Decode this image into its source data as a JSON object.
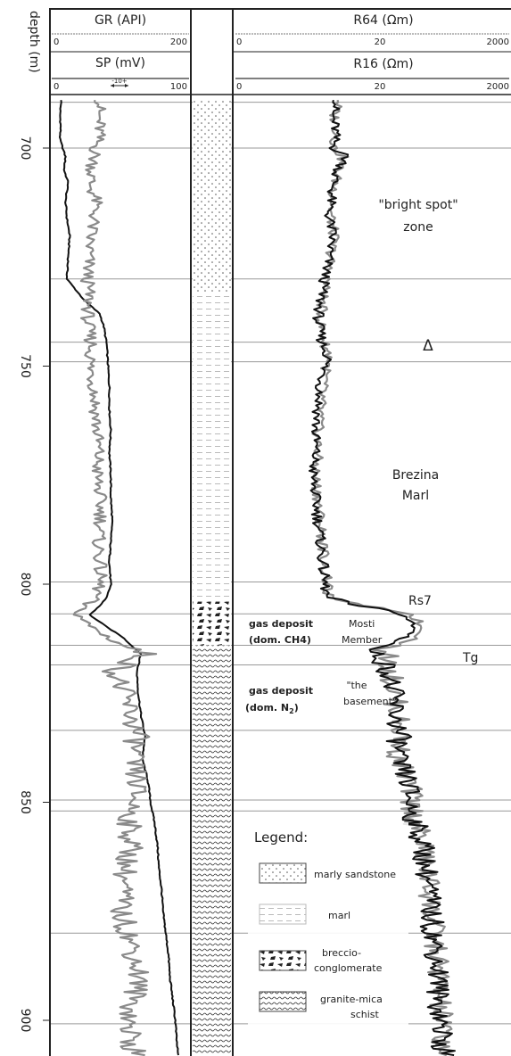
{
  "chart_data": {
    "type": "line",
    "depth_axis": {
      "label": "depth (m)",
      "ticks": [
        700,
        750,
        800,
        850,
        900
      ],
      "range": [
        689,
        908
      ],
      "inverted": true
    },
    "header": {
      "gr": {
        "label": "GR (API)",
        "min": "0",
        "max": "200"
      },
      "sp": {
        "label": "SP (mV)",
        "min": "0",
        "max": "100",
        "scale_bar": "-10+"
      },
      "r64": {
        "label": "R64 (Ωm)",
        "t0": "0",
        "t1": "20",
        "t2": "2000"
      },
      "r16": {
        "label": "R16 (Ωm)",
        "t0": "0",
        "t1": "20",
        "t2": "2000"
      }
    },
    "boundaries": [
      689.5,
      700,
      730,
      744.5,
      749,
      799.5,
      806.8,
      814,
      818.5,
      833.5,
      849.5,
      852,
      880,
      900.8
    ],
    "series": [
      {
        "name": "GR (API)",
        "track": "left",
        "range": [
          0,
          200
        ],
        "style": "black",
        "depth": [
          689,
          692,
          695,
          698,
          700,
          702,
          705,
          708,
          712,
          716,
          720,
          725,
          730,
          735,
          738,
          741,
          745,
          750,
          755,
          760,
          765,
          770,
          775,
          780,
          785,
          790,
          795,
          800,
          803,
          805,
          807,
          810,
          812,
          814,
          816,
          820,
          825,
          830,
          835,
          840,
          845,
          850,
          855,
          860,
          865,
          870,
          875,
          880,
          885,
          890,
          895,
          900,
          905,
          908
        ],
        "values": [
          14,
          12,
          13,
          12,
          16,
          20,
          18,
          24,
          20,
          22,
          26,
          24,
          22,
          48,
          70,
          76,
          80,
          82,
          84,
          84,
          86,
          84,
          86,
          86,
          88,
          86,
          84,
          86,
          80,
          70,
          55,
          82,
          102,
          116,
          130,
          124,
          126,
          130,
          136,
          132,
          140,
          144,
          150,
          154,
          156,
          160,
          162,
          166,
          170,
          172,
          176,
          180,
          182,
          184
        ]
      },
      {
        "name": "SP (mV)",
        "track": "left",
        "range": [
          0,
          100
        ],
        "style": "gray",
        "depth": [
          689,
          692,
          696,
          700,
          704,
          708,
          712,
          716,
          720,
          725,
          730,
          735,
          740,
          745,
          750,
          755,
          760,
          765,
          770,
          775,
          780,
          785,
          790,
          795,
          800,
          803,
          806,
          809,
          812,
          814,
          816,
          820,
          825,
          830,
          835,
          840,
          845,
          850,
          855,
          860,
          865,
          870,
          875,
          880,
          885,
          890,
          895,
          900,
          905,
          908
        ],
        "values": [
          36,
          34,
          35,
          32,
          30,
          28,
          32,
          31,
          28,
          27,
          26,
          27,
          26,
          29,
          28,
          31,
          32,
          33,
          34,
          33,
          35,
          36,
          34,
          35,
          35,
          32,
          18,
          25,
          40,
          52,
          68,
          46,
          52,
          58,
          62,
          58,
          62,
          60,
          56,
          58,
          54,
          52,
          50,
          56,
          60,
          64,
          60,
          56,
          58,
          60
        ]
      },
      {
        "name": "R64 (Ωm)",
        "track": "right",
        "scale": "log",
        "range": [
          2,
          2000
        ],
        "style": "gray",
        "depth": [
          689,
          692,
          696,
          700,
          702,
          706,
          710,
          715,
          720,
          725,
          730,
          735,
          740,
          745,
          748,
          750,
          755,
          760,
          765,
          770,
          775,
          780,
          785,
          790,
          795,
          800,
          803,
          805,
          807,
          809,
          811,
          812,
          814,
          815,
          816,
          818,
          820,
          825,
          830,
          835,
          840,
          845,
          850,
          855,
          860,
          865,
          870,
          875,
          880,
          885,
          890,
          895,
          900,
          905,
          908
        ],
        "values": [
          28,
          24,
          26,
          24,
          30,
          26,
          24,
          22,
          24,
          22,
          20,
          18,
          17,
          19,
          22,
          20,
          18,
          17,
          16,
          16,
          15,
          16,
          17,
          18,
          19,
          20,
          21,
          45,
          170,
          210,
          230,
          205,
          120,
          70,
          90,
          95,
          100,
          110,
          120,
          130,
          120,
          160,
          170,
          190,
          230,
          250,
          270,
          280,
          300,
          320,
          350,
          340,
          370,
          380,
          390
        ]
      },
      {
        "name": "R16 (Ωm)",
        "track": "right",
        "scale": "log",
        "range": [
          2,
          2000
        ],
        "style": "black",
        "depth": [
          689,
          692,
          696,
          700,
          702,
          706,
          710,
          715,
          720,
          725,
          730,
          735,
          740,
          745,
          748,
          750,
          755,
          760,
          765,
          770,
          775,
          780,
          785,
          790,
          795,
          800,
          803,
          805,
          807,
          809,
          811,
          812,
          814,
          815,
          816,
          818,
          820,
          825,
          830,
          835,
          840,
          845,
          850,
          855,
          860,
          865,
          870,
          875,
          880,
          885,
          890,
          895,
          900,
          905,
          908
        ],
        "values": [
          27,
          23,
          25,
          24,
          33,
          25,
          23,
          21,
          23,
          21,
          19,
          17,
          16,
          18,
          21,
          19,
          17,
          16,
          15,
          15,
          14,
          15,
          16,
          17,
          18,
          19,
          20,
          42,
          140,
          170,
          180,
          150,
          95,
          55,
          75,
          85,
          95,
          105,
          115,
          125,
          115,
          155,
          165,
          185,
          225,
          245,
          265,
          275,
          295,
          315,
          340,
          330,
          360,
          370,
          380
        ]
      }
    ],
    "lithology": [
      {
        "type": "marly-sandstone",
        "top": 689,
        "base": 733
      },
      {
        "type": "marl",
        "top": 733,
        "base": 804
      },
      {
        "type": "breccio-conglomerate",
        "top": 804,
        "base": 814
      },
      {
        "type": "granite-mica-schist",
        "top": 814,
        "base": 908
      }
    ],
    "annotations": {
      "bright_spot_1": "\"bright spot\"",
      "bright_spot_2": "zone",
      "delta": "Δ",
      "brezina_1": "Brezina",
      "brezina_2": "Marl",
      "rs7": "Rs7",
      "tg": "Tg",
      "gas1_line1": "gas deposit",
      "gas1_line2": "(dom. CH4)",
      "mosti_1": "Mosti",
      "mosti_2": "Member",
      "gas2_line1": "gas deposit",
      "gas2_line2_pre": "(dom. N",
      "gas2_line2_sub": "2",
      "gas2_line2_post": ")",
      "basement_1": "\"the",
      "basement_2": "basement\""
    },
    "legend": {
      "title": "Legend:",
      "items": [
        {
          "type": "marly-sandstone",
          "label_1": "marly sandstone",
          "label_2": ""
        },
        {
          "type": "marl",
          "label_1": "marl",
          "label_2": ""
        },
        {
          "type": "breccio-conglomerate",
          "label_1": "breccio-",
          "label_2": "conglomerate"
        },
        {
          "type": "granite-mica-schist",
          "label_1": "granite-mica",
          "label_2": "schist"
        }
      ]
    }
  }
}
